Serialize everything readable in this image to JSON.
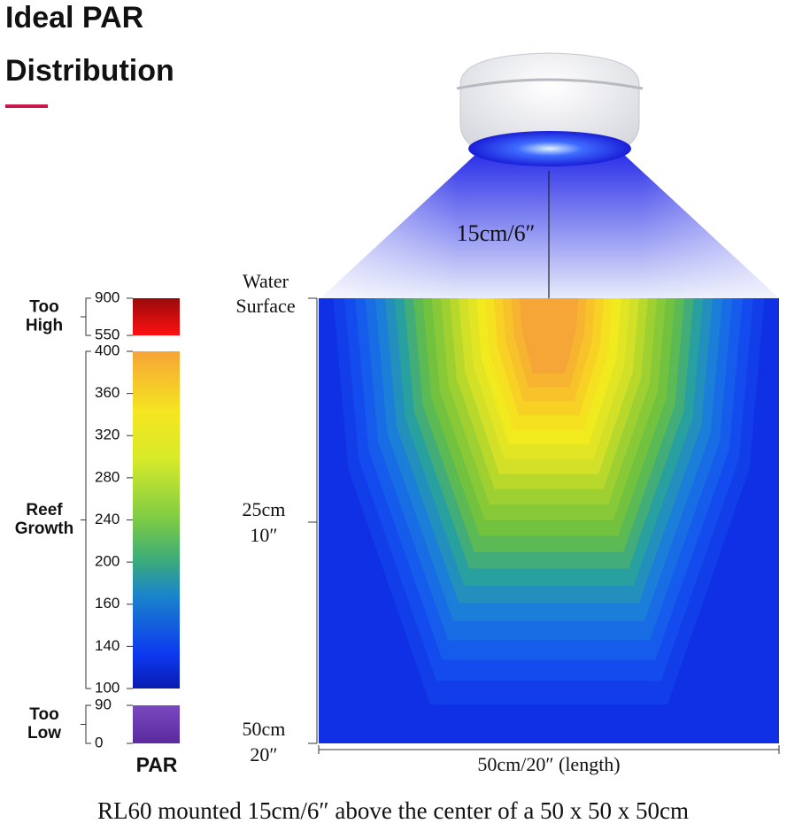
{
  "title": [
    "Ideal PAR",
    "Distribution"
  ],
  "legend": {
    "groups": [
      {
        "label": [
          "Too",
          "High"
        ],
        "ticks": [
          900,
          550
        ]
      },
      {
        "label": [
          "Reef",
          "Growth"
        ],
        "ticks": [
          400,
          360,
          320,
          280,
          240,
          200,
          160,
          140,
          100
        ]
      },
      {
        "label": [
          "Too",
          "Low"
        ],
        "ticks": [
          90,
          0
        ]
      }
    ],
    "axis_title": "PAR"
  },
  "diagram": {
    "mount_height": "15cm/6″",
    "depth_labels": [
      [
        "Water",
        "Surface"
      ],
      [
        "25cm",
        "10″"
      ],
      [
        "50cm",
        "20″"
      ]
    ],
    "length_label": "50cm/20″ (length)"
  },
  "caption": "RL60 mounted 15cm/6″ above the center of a 50 x 50 x 50cm"
}
